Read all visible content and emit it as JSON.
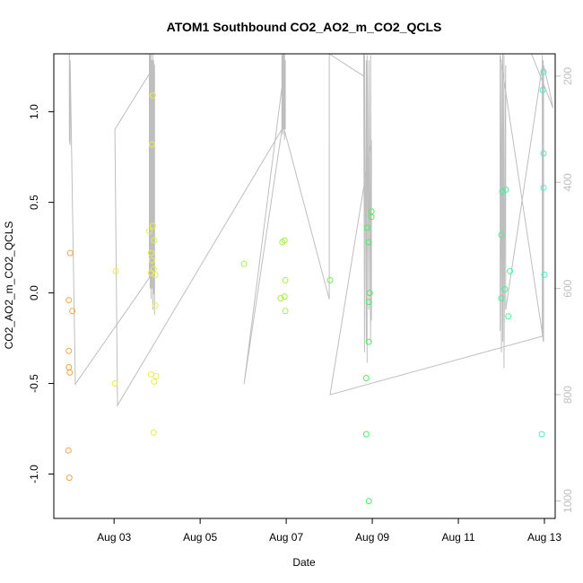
{
  "chart_data": {
    "type": "scatter",
    "title": "ATOM1 Southbound CO2_AO2_m_CO2_QCLS",
    "xlabel": "Date",
    "ylabel": "CO2_AO2_m_CO2_QCLS",
    "x_unit": "days of August",
    "xlim": [
      1.6,
      13.25
    ],
    "ylim": [
      -1.245,
      1.32
    ],
    "x_ticks": [
      3,
      5,
      7,
      9,
      11,
      13
    ],
    "x_tick_labels": [
      "Aug 03",
      "Aug 05",
      "Aug 07",
      "Aug 09",
      "Aug 11",
      "Aug 13"
    ],
    "y_ticks": [
      -1.0,
      -0.5,
      0.0,
      0.5,
      1.0
    ],
    "y_tick_labels": [
      "-1.0",
      "-0.5",
      "0.0",
      "0.5",
      "1.0"
    ],
    "right_axis": {
      "ticks": [
        200,
        400,
        600,
        800,
        1000
      ],
      "tick_labels": [
        "200",
        "400",
        "600",
        "800",
        "1000"
      ],
      "ylim_reversed": [
        158,
        1033
      ],
      "color": "#bebebe"
    },
    "grid": false,
    "legend": "none",
    "points": [
      {
        "x": 1.98,
        "y": 0.22,
        "color": "#f4a442"
      },
      {
        "x": 1.95,
        "y": -0.04,
        "color": "#f4a442"
      },
      {
        "x": 2.03,
        "y": -0.1,
        "color": "#f4a442"
      },
      {
        "x": 1.95,
        "y": -0.32,
        "color": "#f4a442"
      },
      {
        "x": 1.95,
        "y": -0.41,
        "color": "#f4a442"
      },
      {
        "x": 1.97,
        "y": -0.44,
        "color": "#f4a442"
      },
      {
        "x": 1.94,
        "y": -0.87,
        "color": "#f4a442"
      },
      {
        "x": 1.96,
        "y": -1.02,
        "color": "#f4a442"
      },
      {
        "x": 3.04,
        "y": 0.12,
        "color": "#e8ee4a"
      },
      {
        "x": 3.02,
        "y": -0.5,
        "color": "#e8ee4a"
      },
      {
        "x": 3.9,
        "y": 1.09,
        "color": "#e8ee4a"
      },
      {
        "x": 3.88,
        "y": 0.82,
        "color": "#e8ee4a"
      },
      {
        "x": 3.9,
        "y": 0.37,
        "color": "#e8ee4a"
      },
      {
        "x": 3.82,
        "y": 0.34,
        "color": "#e8ee4a"
      },
      {
        "x": 3.93,
        "y": 0.29,
        "color": "#e8ee4a"
      },
      {
        "x": 3.86,
        "y": 0.22,
        "color": "#e8ee4a"
      },
      {
        "x": 3.88,
        "y": 0.18,
        "color": "#e8ee4a"
      },
      {
        "x": 3.92,
        "y": 0.13,
        "color": "#e8ee4a"
      },
      {
        "x": 3.86,
        "y": 0.11,
        "color": "#e8ee4a"
      },
      {
        "x": 3.96,
        "y": 0.1,
        "color": "#e8ee4a"
      },
      {
        "x": 3.96,
        "y": -0.07,
        "color": "#e8ee4a"
      },
      {
        "x": 3.86,
        "y": -0.45,
        "color": "#e8ee4a"
      },
      {
        "x": 3.98,
        "y": -0.46,
        "color": "#e8ee4a"
      },
      {
        "x": 3.93,
        "y": -0.49,
        "color": "#e8ee4a"
      },
      {
        "x": 3.92,
        "y": -0.77,
        "color": "#e8ee4a"
      },
      {
        "x": 6.02,
        "y": 0.16,
        "color": "#a8ee4a"
      },
      {
        "x": 6.91,
        "y": 0.28,
        "color": "#a8ee4a"
      },
      {
        "x": 6.96,
        "y": 0.29,
        "color": "#a8ee4a"
      },
      {
        "x": 6.98,
        "y": 0.07,
        "color": "#a8ee4a"
      },
      {
        "x": 6.96,
        "y": -0.02,
        "color": "#a8ee4a"
      },
      {
        "x": 6.87,
        "y": -0.03,
        "color": "#a8ee4a"
      },
      {
        "x": 6.98,
        "y": -0.1,
        "color": "#a8ee4a"
      },
      {
        "x": 8.02,
        "y": 0.07,
        "color": "#78ee4a"
      },
      {
        "x": 8.98,
        "y": 0.45,
        "color": "#4aee64"
      },
      {
        "x": 8.98,
        "y": 0.42,
        "color": "#4aee64"
      },
      {
        "x": 8.88,
        "y": 0.36,
        "color": "#4aee64"
      },
      {
        "x": 8.92,
        "y": 0.28,
        "color": "#4aee64"
      },
      {
        "x": 8.94,
        "y": 0.0,
        "color": "#4aee64"
      },
      {
        "x": 8.92,
        "y": -0.05,
        "color": "#4aee64"
      },
      {
        "x": 8.92,
        "y": -0.27,
        "color": "#4aee64"
      },
      {
        "x": 8.86,
        "y": -0.47,
        "color": "#4aee64"
      },
      {
        "x": 8.86,
        "y": -0.78,
        "color": "#4aee64"
      },
      {
        "x": 8.92,
        "y": -1.15,
        "color": "#4aee64"
      },
      {
        "x": 12.02,
        "y": 0.56,
        "color": "#4aeea0"
      },
      {
        "x": 12.1,
        "y": 0.57,
        "color": "#4aeea0"
      },
      {
        "x": 12.0,
        "y": 0.32,
        "color": "#4aeea0"
      },
      {
        "x": 12.2,
        "y": 0.12,
        "color": "#4aeea0"
      },
      {
        "x": 12.08,
        "y": 0.02,
        "color": "#4aeea0"
      },
      {
        "x": 12.0,
        "y": -0.03,
        "color": "#4aeea0"
      },
      {
        "x": 12.16,
        "y": -0.13,
        "color": "#4aeea0"
      },
      {
        "x": 12.98,
        "y": 1.22,
        "color": "#4aeec4"
      },
      {
        "x": 12.96,
        "y": 1.12,
        "color": "#4aeec4"
      },
      {
        "x": 12.98,
        "y": 0.77,
        "color": "#4aeec4"
      },
      {
        "x": 12.98,
        "y": 0.58,
        "color": "#4aeec4"
      },
      {
        "x": 13.0,
        "y": 0.1,
        "color": "#4aeec4"
      },
      {
        "x": 12.94,
        "y": -0.78,
        "color": "#4aeec4"
      }
    ],
    "right_axis_series": {
      "color": "#bebebe",
      "x": [
        1.93,
        1.93,
        1.96,
        1.96,
        1.98,
        1.98,
        2.1,
        3.82,
        3.82,
        3.84,
        3.84,
        3.86,
        3.86,
        3.88,
        3.88,
        3.9,
        3.9,
        3.92,
        3.92,
        3.94,
        3.94,
        3.02,
        3.08,
        6.9,
        6.9,
        6.92,
        6.92,
        6.94,
        6.94,
        6.96,
        6.96,
        6.98,
        6.98,
        6.02,
        6.92,
        8.0,
        8.0,
        8.8,
        8.8,
        8.82,
        8.82,
        8.86,
        8.86,
        8.88,
        8.88,
        8.92,
        8.92,
        8.96,
        8.96,
        8.98,
        8.98,
        8.02,
        12.95,
        12.95,
        12.97,
        12.97,
        12.1,
        12.1,
        12.06,
        12.06,
        12.03,
        12.03,
        12.0,
        12.0,
        11.97,
        11.97,
        12.98,
        12.98,
        13.1,
        13.2,
        12.7,
        12.5
      ],
      "y": [
        120,
        140,
        150,
        320,
        330,
        170,
        780,
        580,
        150,
        600,
        160,
        620,
        140,
        600,
        170,
        640,
        150,
        610,
        170,
        650,
        180,
        300,
        820,
        300,
        140,
        310,
        160,
        300,
        150,
        320,
        130,
        300,
        170,
        780,
        290,
        620,
        120,
        200,
        150,
        720,
        160,
        700,
        170,
        740,
        160,
        640,
        170,
        700,
        160,
        660,
        320,
        800,
        690,
        160,
        700,
        170,
        640,
        180,
        750,
        160,
        700,
        140,
        720,
        170,
        680,
        160,
        700,
        180,
        220,
        260,
        150,
        150
      ]
    }
  }
}
